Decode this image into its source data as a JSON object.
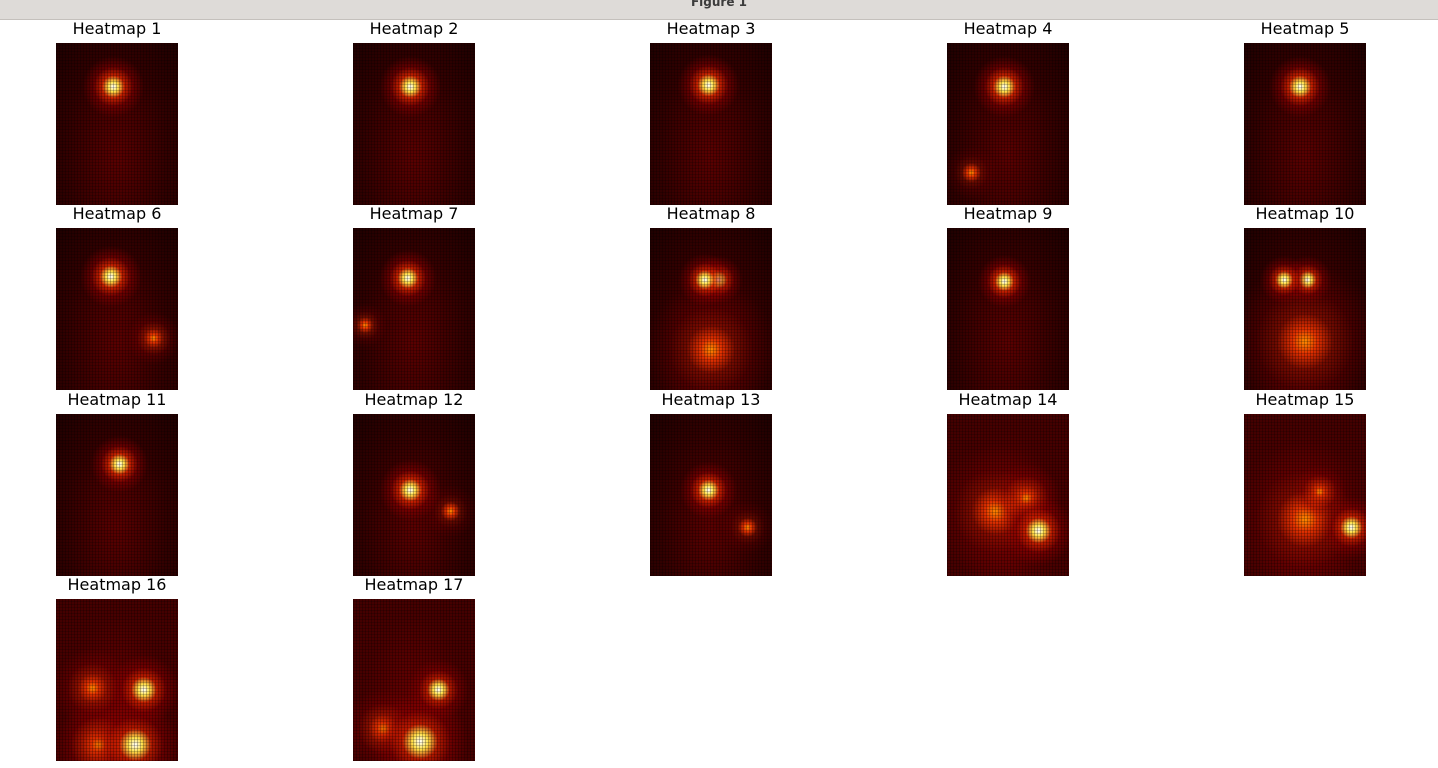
{
  "window": {
    "title": "Figure 1"
  },
  "heatmaps": [
    {
      "title": "Heatmap 1"
    },
    {
      "title": "Heatmap 2"
    },
    {
      "title": "Heatmap 3"
    },
    {
      "title": "Heatmap 4"
    },
    {
      "title": "Heatmap 5"
    },
    {
      "title": "Heatmap 6"
    },
    {
      "title": "Heatmap 7"
    },
    {
      "title": "Heatmap 8"
    },
    {
      "title": "Heatmap 9"
    },
    {
      "title": "Heatmap 10"
    },
    {
      "title": "Heatmap 11"
    },
    {
      "title": "Heatmap 12"
    },
    {
      "title": "Heatmap 13"
    },
    {
      "title": "Heatmap 14"
    },
    {
      "title": "Heatmap 15"
    },
    {
      "title": "Heatmap 16"
    },
    {
      "title": "Heatmap 17"
    }
  ]
}
